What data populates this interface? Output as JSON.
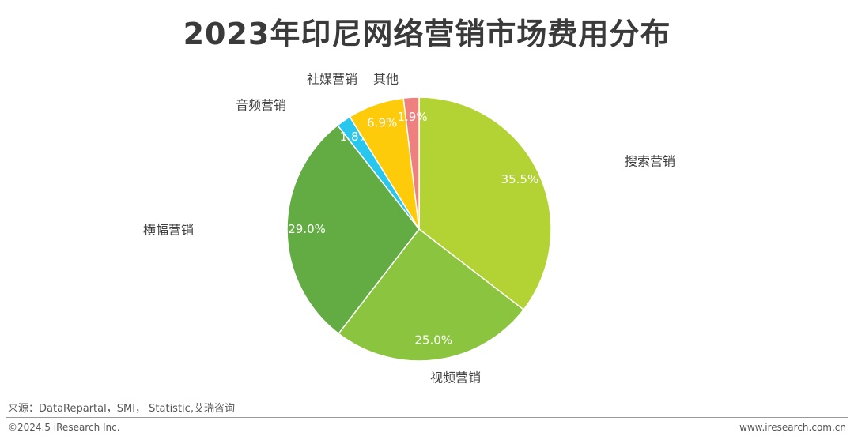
{
  "title": "2023年印尼网络营销市场费用分布",
  "chart_data": {
    "type": "pie",
    "title": "2023年印尼网络营销市场费用分布",
    "slices": [
      {
        "name": "搜索营销",
        "value": 35.5,
        "label": "35.5%",
        "color": "#b3d334"
      },
      {
        "name": "视频营销",
        "value": 25.0,
        "label": "25.0%",
        "color": "#8bc43f"
      },
      {
        "name": "横幅营销",
        "value": 29.0,
        "label": "29.0%",
        "color": "#63ac43"
      },
      {
        "name": "音频营销",
        "value": 1.8,
        "label": "1.8%",
        "color": "#29c6ee"
      },
      {
        "name": "社媒营销",
        "value": 6.9,
        "label": "6.9%",
        "color": "#fecb0a"
      },
      {
        "name": "其他",
        "value": 1.9,
        "label": "1.9%",
        "color": "#ef8080"
      }
    ]
  },
  "footer": {
    "source": "来源：DataRepartal，SMI， Statistic,艾瑞咨询",
    "copyright": "©2024.5 iResearch Inc.",
    "website": "www.iresearch.com.cn"
  }
}
